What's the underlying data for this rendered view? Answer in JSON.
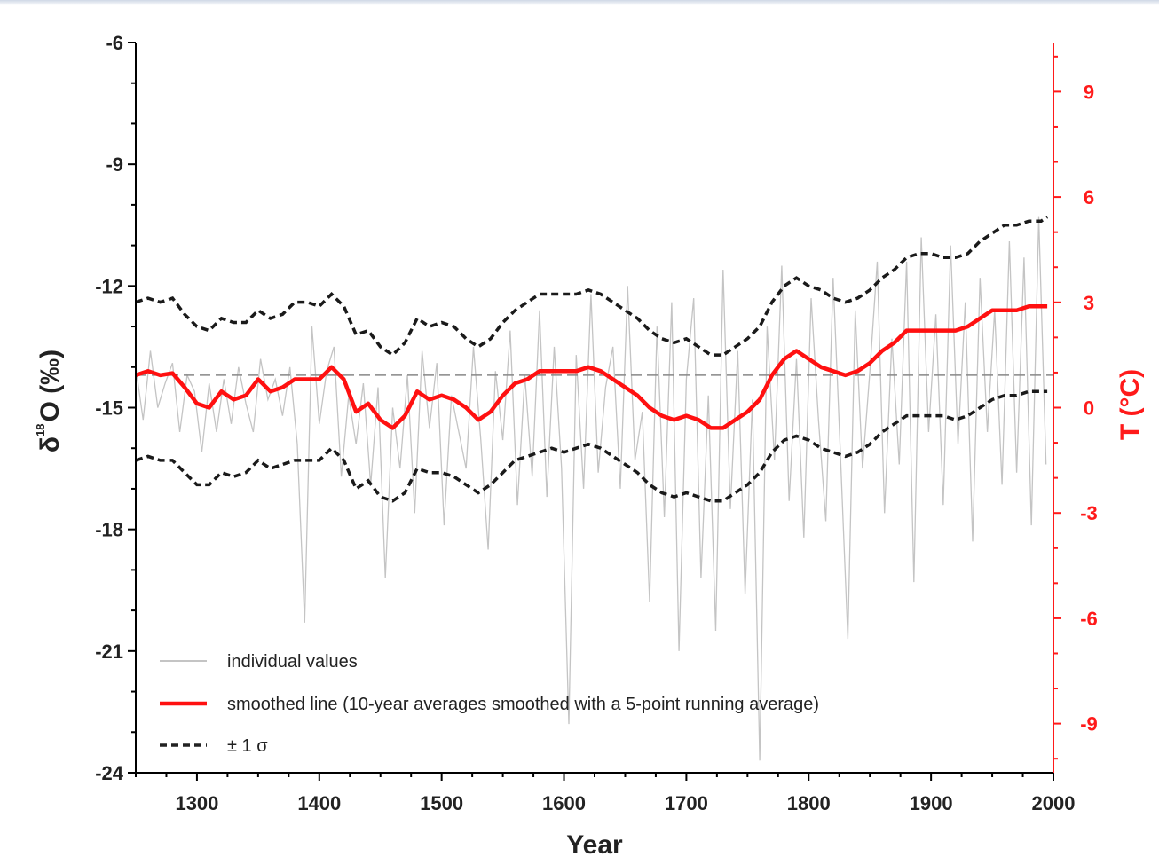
{
  "chart_data": {
    "type": "line",
    "x_label": "Year",
    "y_label_left": {
      "prefix": "δ",
      "superscript": "18",
      "rest": "O (‰)"
    },
    "y_label_right": "T (°C)",
    "xlim": [
      1250,
      2000
    ],
    "ylim_left": [
      -24,
      -6
    ],
    "ylim_right": [
      -10.4,
      10.4
    ],
    "x_ticks": [
      1300,
      1400,
      1500,
      1600,
      1700,
      1800,
      1900,
      2000
    ],
    "x_tick_labels": [
      "1300",
      "1400",
      "1500",
      "1600",
      "1700",
      "1800",
      "1900",
      "2000"
    ],
    "y_left_ticks": [
      -24,
      -21,
      -18,
      -15,
      -12,
      -9,
      -6
    ],
    "y_left_tick_labels": [
      "-24",
      "-21",
      "-18",
      "-15",
      "-12",
      "-9",
      "-6"
    ],
    "y_right_ticks": [
      -9,
      -6,
      -3,
      0,
      3,
      6,
      9
    ],
    "y_right_tick_labels": [
      "-9",
      "-6",
      "-3",
      "0",
      "3",
      "6",
      "9"
    ],
    "reference_line": {
      "y_left": -14.2,
      "style": "dashed",
      "color": "#888888"
    },
    "colors": {
      "left_axis": "#000000",
      "right_axis": "#ff1a1a",
      "individual": "#c4c4c4",
      "smoothed": "#ff1010",
      "sigma": "#000000"
    },
    "legend": [
      {
        "label": "individual values",
        "style": "thin-gray"
      },
      {
        "label": "smoothed line (10-year averages smoothed with a 5-point running average)",
        "style": "thick-red"
      },
      {
        "label": "± 1 σ",
        "style": "dashed-black"
      }
    ],
    "series": [
      {
        "key": "smoothed",
        "x": [
          1250,
          1260,
          1270,
          1280,
          1290,
          1300,
          1310,
          1320,
          1330,
          1340,
          1350,
          1360,
          1370,
          1380,
          1390,
          1400,
          1410,
          1420,
          1430,
          1440,
          1450,
          1460,
          1470,
          1480,
          1490,
          1500,
          1510,
          1520,
          1530,
          1540,
          1550,
          1560,
          1570,
          1580,
          1590,
          1600,
          1610,
          1620,
          1630,
          1640,
          1650,
          1660,
          1670,
          1680,
          1690,
          1700,
          1710,
          1720,
          1730,
          1740,
          1750,
          1760,
          1770,
          1780,
          1790,
          1800,
          1810,
          1820,
          1830,
          1840,
          1850,
          1860,
          1870,
          1880,
          1890,
          1900,
          1910,
          1920,
          1930,
          1940,
          1950,
          1960,
          1970,
          1980,
          1990,
          1995
        ],
        "y": [
          -14.2,
          -14.1,
          -14.2,
          -14.15,
          -14.5,
          -14.9,
          -15.0,
          -14.6,
          -14.8,
          -14.7,
          -14.3,
          -14.6,
          -14.5,
          -14.3,
          -14.3,
          -14.3,
          -14.0,
          -14.3,
          -15.1,
          -14.9,
          -15.3,
          -15.5,
          -15.2,
          -14.6,
          -14.8,
          -14.7,
          -14.8,
          -15.0,
          -15.3,
          -15.1,
          -14.7,
          -14.4,
          -14.3,
          -14.1,
          -14.1,
          -14.1,
          -14.1,
          -14.0,
          -14.1,
          -14.3,
          -14.5,
          -14.7,
          -15.0,
          -15.2,
          -15.3,
          -15.2,
          -15.3,
          -15.5,
          -15.5,
          -15.3,
          -15.1,
          -14.8,
          -14.2,
          -13.8,
          -13.6,
          -13.8,
          -14.0,
          -14.1,
          -14.2,
          -14.1,
          -13.9,
          -13.6,
          -13.4,
          -13.1,
          -13.1,
          -13.1,
          -13.1,
          -13.1,
          -13.0,
          -12.8,
          -12.6,
          -12.6,
          -12.6,
          -12.5,
          -12.5,
          -12.5
        ]
      },
      {
        "key": "sigma_upper",
        "x": [
          1250,
          1260,
          1270,
          1280,
          1290,
          1300,
          1310,
          1320,
          1330,
          1340,
          1350,
          1360,
          1370,
          1380,
          1390,
          1400,
          1410,
          1420,
          1430,
          1440,
          1450,
          1460,
          1470,
          1480,
          1490,
          1500,
          1510,
          1520,
          1530,
          1540,
          1550,
          1560,
          1570,
          1580,
          1590,
          1600,
          1610,
          1620,
          1630,
          1640,
          1650,
          1660,
          1670,
          1680,
          1690,
          1700,
          1710,
          1720,
          1730,
          1740,
          1750,
          1760,
          1770,
          1780,
          1790,
          1800,
          1810,
          1820,
          1830,
          1840,
          1850,
          1860,
          1870,
          1880,
          1890,
          1900,
          1910,
          1920,
          1930,
          1940,
          1950,
          1960,
          1970,
          1980,
          1990,
          1995
        ],
        "y": [
          -12.4,
          -12.3,
          -12.4,
          -12.3,
          -12.7,
          -13.0,
          -13.1,
          -12.8,
          -12.9,
          -12.9,
          -12.6,
          -12.8,
          -12.7,
          -12.4,
          -12.4,
          -12.5,
          -12.2,
          -12.5,
          -13.2,
          -13.1,
          -13.5,
          -13.7,
          -13.4,
          -12.8,
          -13.0,
          -12.9,
          -13.0,
          -13.3,
          -13.5,
          -13.3,
          -12.9,
          -12.6,
          -12.4,
          -12.2,
          -12.2,
          -12.2,
          -12.2,
          -12.1,
          -12.2,
          -12.4,
          -12.6,
          -12.8,
          -13.1,
          -13.3,
          -13.4,
          -13.3,
          -13.5,
          -13.7,
          -13.7,
          -13.5,
          -13.3,
          -13.0,
          -12.4,
          -12.0,
          -11.8,
          -12.0,
          -12.1,
          -12.3,
          -12.4,
          -12.3,
          -12.1,
          -11.8,
          -11.6,
          -11.3,
          -11.2,
          -11.2,
          -11.3,
          -11.3,
          -11.2,
          -10.9,
          -10.7,
          -10.5,
          -10.5,
          -10.4,
          -10.4,
          -10.3
        ]
      },
      {
        "key": "sigma_lower",
        "x": [
          1250,
          1260,
          1270,
          1280,
          1290,
          1300,
          1310,
          1320,
          1330,
          1340,
          1350,
          1360,
          1370,
          1380,
          1390,
          1400,
          1410,
          1420,
          1430,
          1440,
          1450,
          1460,
          1470,
          1480,
          1490,
          1500,
          1510,
          1520,
          1530,
          1540,
          1550,
          1560,
          1570,
          1580,
          1590,
          1600,
          1610,
          1620,
          1630,
          1640,
          1650,
          1660,
          1670,
          1680,
          1690,
          1700,
          1710,
          1720,
          1730,
          1740,
          1750,
          1760,
          1770,
          1780,
          1790,
          1800,
          1810,
          1820,
          1830,
          1840,
          1850,
          1860,
          1870,
          1880,
          1890,
          1900,
          1910,
          1920,
          1930,
          1940,
          1950,
          1960,
          1970,
          1980,
          1990,
          1995
        ],
        "y": [
          -16.3,
          -16.2,
          -16.3,
          -16.3,
          -16.6,
          -16.9,
          -16.9,
          -16.6,
          -16.7,
          -16.6,
          -16.3,
          -16.5,
          -16.4,
          -16.3,
          -16.3,
          -16.3,
          -16.0,
          -16.3,
          -17.0,
          -16.8,
          -17.2,
          -17.3,
          -17.1,
          -16.5,
          -16.6,
          -16.6,
          -16.7,
          -16.9,
          -17.1,
          -16.9,
          -16.6,
          -16.3,
          -16.2,
          -16.1,
          -16.0,
          -16.1,
          -16.0,
          -15.9,
          -16.0,
          -16.2,
          -16.4,
          -16.6,
          -16.9,
          -17.1,
          -17.2,
          -17.1,
          -17.2,
          -17.3,
          -17.3,
          -17.1,
          -16.9,
          -16.6,
          -16.1,
          -15.8,
          -15.7,
          -15.8,
          -16.0,
          -16.1,
          -16.2,
          -16.1,
          -15.9,
          -15.6,
          -15.4,
          -15.2,
          -15.2,
          -15.2,
          -15.2,
          -15.3,
          -15.2,
          -15.0,
          -14.8,
          -14.7,
          -14.7,
          -14.6,
          -14.6,
          -14.6
        ]
      },
      {
        "key": "individual",
        "x": [
          1250,
          1256,
          1262,
          1268,
          1274,
          1280,
          1286,
          1292,
          1298,
          1304,
          1310,
          1316,
          1322,
          1328,
          1334,
          1340,
          1346,
          1352,
          1358,
          1364,
          1370,
          1376,
          1382,
          1388,
          1394,
          1400,
          1406,
          1412,
          1418,
          1424,
          1430,
          1436,
          1442,
          1448,
          1454,
          1460,
          1466,
          1472,
          1478,
          1484,
          1490,
          1496,
          1502,
          1508,
          1514,
          1520,
          1526,
          1532,
          1538,
          1544,
          1550,
          1556,
          1562,
          1568,
          1574,
          1580,
          1586,
          1592,
          1598,
          1604,
          1610,
          1616,
          1622,
          1628,
          1634,
          1640,
          1646,
          1652,
          1658,
          1664,
          1670,
          1676,
          1682,
          1688,
          1694,
          1700,
          1706,
          1712,
          1718,
          1724,
          1730,
          1736,
          1742,
          1748,
          1754,
          1760,
          1766,
          1772,
          1778,
          1784,
          1790,
          1796,
          1802,
          1808,
          1814,
          1820,
          1826,
          1832,
          1838,
          1844,
          1850,
          1856,
          1862,
          1868,
          1874,
          1880,
          1886,
          1892,
          1898,
          1904,
          1910,
          1916,
          1922,
          1928,
          1934,
          1940,
          1946,
          1952,
          1958,
          1964,
          1970,
          1976,
          1982,
          1988,
          1994
        ],
        "y": [
          -14.0,
          -15.3,
          -13.6,
          -15.0,
          -14.4,
          -13.9,
          -15.6,
          -14.2,
          -14.6,
          -16.1,
          -14.4,
          -15.6,
          -14.3,
          -15.4,
          -14.0,
          -14.9,
          -15.6,
          -13.8,
          -14.8,
          -14.3,
          -15.2,
          -14.0,
          -15.9,
          -20.3,
          -13.0,
          -15.4,
          -14.1,
          -13.5,
          -16.7,
          -14.7,
          -15.9,
          -14.4,
          -16.9,
          -14.5,
          -19.2,
          -15.0,
          -16.5,
          -14.2,
          -17.6,
          -13.6,
          -15.5,
          -13.9,
          -17.9,
          -14.7,
          -15.6,
          -16.5,
          -13.5,
          -15.8,
          -18.5,
          -14.1,
          -15.8,
          -13.1,
          -17.4,
          -14.2,
          -16.7,
          -12.6,
          -17.2,
          -13.5,
          -16.5,
          -22.8,
          -13.7,
          -17.0,
          -12.2,
          -16.6,
          -14.5,
          -13.5,
          -17.0,
          -12.0,
          -16.3,
          -15.1,
          -19.8,
          -13.0,
          -17.7,
          -12.4,
          -21.0,
          -14.3,
          -12.3,
          -19.2,
          -14.7,
          -20.5,
          -11.6,
          -17.5,
          -13.6,
          -19.6,
          -14.8,
          -23.7,
          -13.0,
          -16.3,
          -11.5,
          -17.3,
          -13.8,
          -18.2,
          -12.3,
          -15.3,
          -17.8,
          -11.8,
          -16.2,
          -20.7,
          -12.6,
          -16.5,
          -14.1,
          -11.4,
          -17.6,
          -13.3,
          -16.4,
          -11.4,
          -19.3,
          -10.8,
          -15.6,
          -12.7,
          -17.4,
          -11.0,
          -15.9,
          -12.4,
          -18.3,
          -11.8,
          -15.6,
          -12.6,
          -16.9,
          -10.9,
          -16.6,
          -11.3,
          -17.9,
          -10.3,
          -16.4
        ]
      }
    ]
  }
}
